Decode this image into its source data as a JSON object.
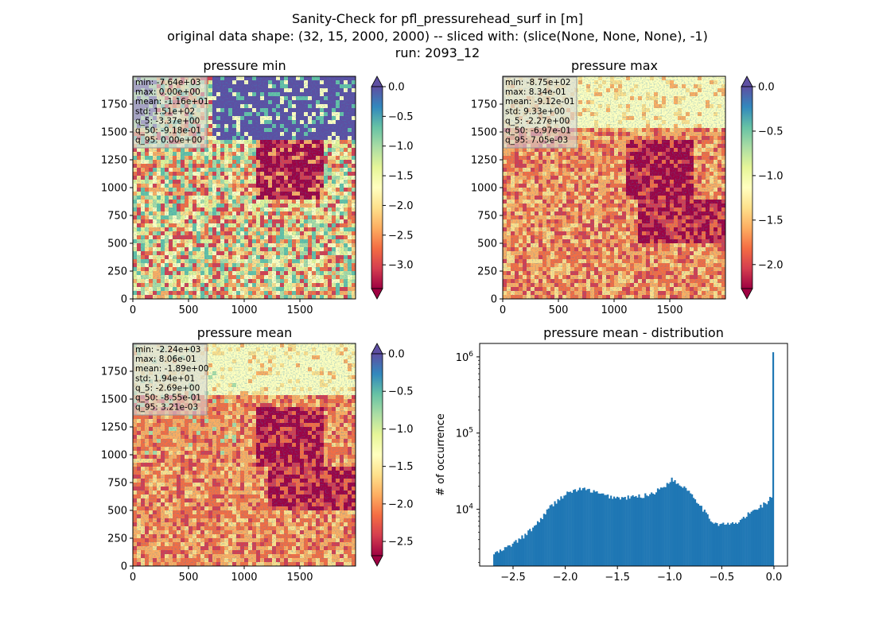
{
  "figure": {
    "title_lines": [
      "Sanity-Check for pfl_pressurehead_surf in [m]",
      "original data shape: (32, 15, 2000, 2000) -- sliced with: (slice(None, None, None), -1)",
      "run: 2093_12"
    ]
  },
  "colors": {
    "spectral": [
      "#9e0142",
      "#d53e4f",
      "#f46d43",
      "#fdae61",
      "#fee08b",
      "#ffffbf",
      "#e6f598",
      "#abdda4",
      "#66c2a5",
      "#3288bd",
      "#5e4fa2"
    ],
    "hist_bar": "#1f77b4",
    "stats_box_bg": "#d9d9d9"
  },
  "chart_data": [
    {
      "type": "heatmap",
      "title": "pressure min",
      "xlim": [
        0,
        2000
      ],
      "ylim": [
        0,
        2000
      ],
      "xticks": [
        0,
        500,
        1000,
        1500
      ],
      "yticks": [
        0,
        250,
        500,
        750,
        1000,
        1250,
        1500,
        1750
      ],
      "colorbar": {
        "vmin": -3.4,
        "vmax": 0.0,
        "ticks": [
          "0.0",
          "-0.5",
          "-1.0",
          "-1.5",
          "-2.0",
          "-2.5",
          "-3.0"
        ],
        "tick_values": [
          0.0,
          -0.5,
          -1.0,
          -1.5,
          -2.0,
          -2.5,
          -3.0
        ],
        "extend_colors": [
          "#9e0142",
          "#5e4fa2"
        ]
      },
      "stats": [
        "min: -7.64e+03",
        "max: 0.00e+00",
        "mean: -1.16e+01",
        "std: 1.51e+02",
        "q_5: -3.37e+00",
        "q_50: -9.18e-01",
        "q_95: 0.00e+00"
      ]
    },
    {
      "type": "heatmap",
      "title": "pressure max",
      "xlim": [
        0,
        2000
      ],
      "ylim": [
        0,
        2000
      ],
      "xticks": [
        0,
        500,
        1000,
        1500
      ],
      "yticks": [
        0,
        250,
        500,
        750,
        1000,
        1250,
        1500,
        1750
      ],
      "colorbar": {
        "vmin": -2.27,
        "vmax": 0.0,
        "ticks": [
          "0.0",
          "-0.5",
          "-1.0",
          "-1.5",
          "-2.0"
        ],
        "tick_values": [
          0.0,
          -0.5,
          -1.0,
          -1.5,
          -2.0
        ],
        "extend_colors": [
          "#9e0142",
          "#5e4fa2"
        ]
      },
      "stats": [
        "min: -8.75e+02",
        "max: 8.34e-01",
        "mean: -9.12e-01",
        "std: 9.33e+00",
        "q_5: -2.27e+00",
        "q_50: -6.97e-01",
        "q_95: 7.05e-03"
      ]
    },
    {
      "type": "heatmap",
      "title": "pressure mean",
      "xlim": [
        0,
        2000
      ],
      "ylim": [
        0,
        2000
      ],
      "xticks": [
        0,
        500,
        1000,
        1500
      ],
      "yticks": [
        0,
        250,
        500,
        750,
        1000,
        1250,
        1500,
        1750
      ],
      "colorbar": {
        "vmin": -2.69,
        "vmax": 0.0,
        "ticks": [
          "0.0",
          "-0.5",
          "-1.0",
          "-1.5",
          "-2.0",
          "-2.5"
        ],
        "tick_values": [
          0.0,
          -0.5,
          -1.0,
          -1.5,
          -2.0,
          -2.5
        ],
        "extend_colors": [
          "#9e0142",
          "#5e4fa2"
        ]
      },
      "stats": [
        "min: -2.24e+03",
        "max: 8.06e-01",
        "mean: -1.89e+00",
        "std: 1.94e+01",
        "q_5: -2.69e+00",
        "q_50: -8.55e-01",
        "q_95: 3.21e-03"
      ]
    },
    {
      "type": "bar",
      "title": "pressure mean - distribution",
      "xlabel": "",
      "ylabel": "# of occurrence",
      "xlim": [
        -2.82,
        0.13
      ],
      "ylim_log": [
        1800,
        1500000
      ],
      "y_scale": "log",
      "xticks": [
        -2.5,
        -2.0,
        -1.5,
        -1.0,
        -0.5,
        0.0
      ],
      "xtick_labels": [
        "−2.5",
        "−2.0",
        "−1.5",
        "−1.0",
        "−0.5",
        "0.0"
      ],
      "yticks": [
        10000,
        100000,
        1000000
      ],
      "ytick_labels": [
        [
          "10",
          "4"
        ],
        [
          "10",
          "5"
        ],
        [
          "10",
          "6"
        ]
      ],
      "bin_range": [
        -2.69,
        0.0
      ],
      "control_points": [
        [
          -2.69,
          2600
        ],
        [
          -2.62,
          2800
        ],
        [
          -2.55,
          3200
        ],
        [
          -2.45,
          3900
        ],
        [
          -2.35,
          5000
        ],
        [
          -2.25,
          7000
        ],
        [
          -2.15,
          10500
        ],
        [
          -2.05,
          14000
        ],
        [
          -1.95,
          17000
        ],
        [
          -1.85,
          18500
        ],
        [
          -1.75,
          17500
        ],
        [
          -1.65,
          15500
        ],
        [
          -1.55,
          14500
        ],
        [
          -1.45,
          14000
        ],
        [
          -1.35,
          14500
        ],
        [
          -1.25,
          15000
        ],
        [
          -1.15,
          16500
        ],
        [
          -1.05,
          20000
        ],
        [
          -0.98,
          25000
        ],
        [
          -0.92,
          21500
        ],
        [
          -0.85,
          19500
        ],
        [
          -0.78,
          15500
        ],
        [
          -0.7,
          11000
        ],
        [
          -0.62,
          7500
        ],
        [
          -0.55,
          6500
        ],
        [
          -0.45,
          6300
        ],
        [
          -0.35,
          6600
        ],
        [
          -0.25,
          8500
        ],
        [
          -0.15,
          10500
        ],
        [
          -0.06,
          12500
        ],
        [
          -0.02,
          15000
        ]
      ],
      "spike": [
        -0.005,
        1150000
      ]
    }
  ]
}
